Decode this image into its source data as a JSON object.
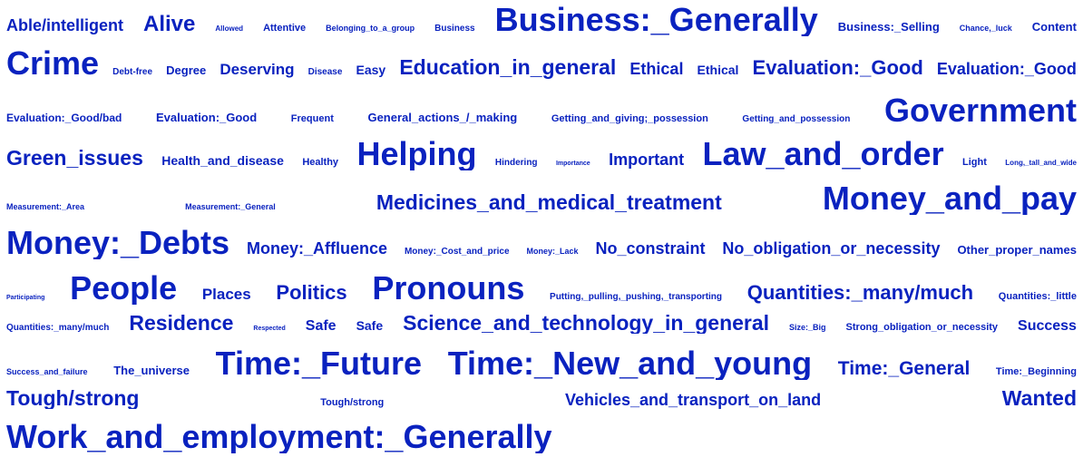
{
  "cloud": {
    "color": "#0a22bf",
    "lines": [
      {
        "words": [
          [
            "Able/intelligent",
            18
          ],
          [
            "Alive",
            24
          ],
          [
            "Allowed",
            8
          ],
          [
            "Attentive",
            11
          ],
          [
            "Belonging_to_a_group",
            9
          ],
          [
            "Business",
            10
          ],
          [
            "Business:_Generally",
            36
          ],
          [
            "Business:_Selling",
            13
          ],
          [
            "Chance,_luck",
            9
          ],
          [
            "Content",
            13
          ]
        ]
      },
      {
        "words": [
          [
            "Crime",
            36
          ],
          [
            "Debt-free",
            10
          ],
          [
            "Degree",
            13
          ],
          [
            "Deserving",
            17
          ],
          [
            "Disease",
            10
          ],
          [
            "Easy",
            14
          ],
          [
            "Education_in_general",
            23
          ],
          [
            "Ethical",
            18
          ],
          [
            "Ethical",
            14
          ],
          [
            "Evaluation:_Good",
            22
          ],
          [
            "Evaluation:_Good",
            18
          ]
        ]
      },
      {
        "words": [
          [
            "Evaluation:_Good/bad",
            12
          ],
          [
            "Evaluation:_Good",
            13
          ],
          [
            "Frequent",
            11
          ],
          [
            "General_actions_/_making",
            13
          ],
          [
            "Getting_and_giving;_possession",
            11
          ],
          [
            "Getting_and_possession",
            10
          ],
          [
            "Government",
            36
          ]
        ]
      },
      {
        "words": [
          [
            "Green_issues",
            23
          ],
          [
            "Health_and_disease",
            14
          ],
          [
            "Healthy",
            11
          ],
          [
            "Helping",
            36
          ],
          [
            "Hindering",
            10
          ],
          [
            "Importance",
            7
          ],
          [
            "Important",
            18
          ],
          [
            "Law_and_order",
            36
          ],
          [
            "Light",
            11
          ],
          [
            "Long,_tall_and_wide",
            8
          ]
        ]
      },
      {
        "words": [
          [
            "Measurement:_Area",
            9
          ],
          [
            "Measurement:_General",
            9
          ],
          [
            "Medicines_and_medical_treatment",
            23
          ],
          [
            "Money_and_pay",
            36
          ]
        ]
      },
      {
        "words": [
          [
            "Money:_Debts",
            36
          ],
          [
            "Money:_Affluence",
            18
          ],
          [
            "Money:_Cost_and_price",
            10
          ],
          [
            "Money:_Lack",
            9
          ],
          [
            "No_constraint",
            18
          ],
          [
            "No_obligation_or_necessity",
            18
          ],
          [
            "Other_proper_names",
            13
          ]
        ]
      },
      {
        "words": [
          [
            "Participating",
            7
          ],
          [
            "People",
            36
          ],
          [
            "Places",
            17
          ],
          [
            "Politics",
            22
          ],
          [
            "Pronouns",
            36
          ],
          [
            "Putting,_pulling,_pushing,_transporting",
            10
          ],
          [
            "Quantities:_many/much",
            22
          ],
          [
            "Quantities:_little",
            11
          ]
        ]
      },
      {
        "words": [
          [
            "Quantities:_many/much",
            10
          ],
          [
            "Residence",
            23
          ],
          [
            "Respected",
            7
          ],
          [
            "Safe",
            16
          ],
          [
            "Safe",
            14
          ],
          [
            "Science_and_technology_in_general",
            23
          ],
          [
            "Size:_Big",
            9
          ],
          [
            "Strong_obligation_or_necessity",
            11
          ],
          [
            "Success",
            16
          ]
        ]
      },
      {
        "words": [
          [
            "Success_and_failure",
            9
          ],
          [
            "The_universe",
            13
          ],
          [
            "Time:_Future",
            36
          ],
          [
            "Time:_New_and_young",
            36
          ],
          [
            "Time:_General",
            21
          ],
          [
            "Time:_Beginning",
            11
          ]
        ]
      },
      {
        "words": [
          [
            "Tough/strong",
            23
          ],
          [
            "Tough/strong",
            11
          ],
          [
            "Vehicles_and_transport_on_land",
            18
          ],
          [
            "Wanted",
            23
          ]
        ]
      },
      {
        "words": [
          [
            "Work_and_employment:_Generally",
            36
          ]
        ]
      }
    ]
  }
}
